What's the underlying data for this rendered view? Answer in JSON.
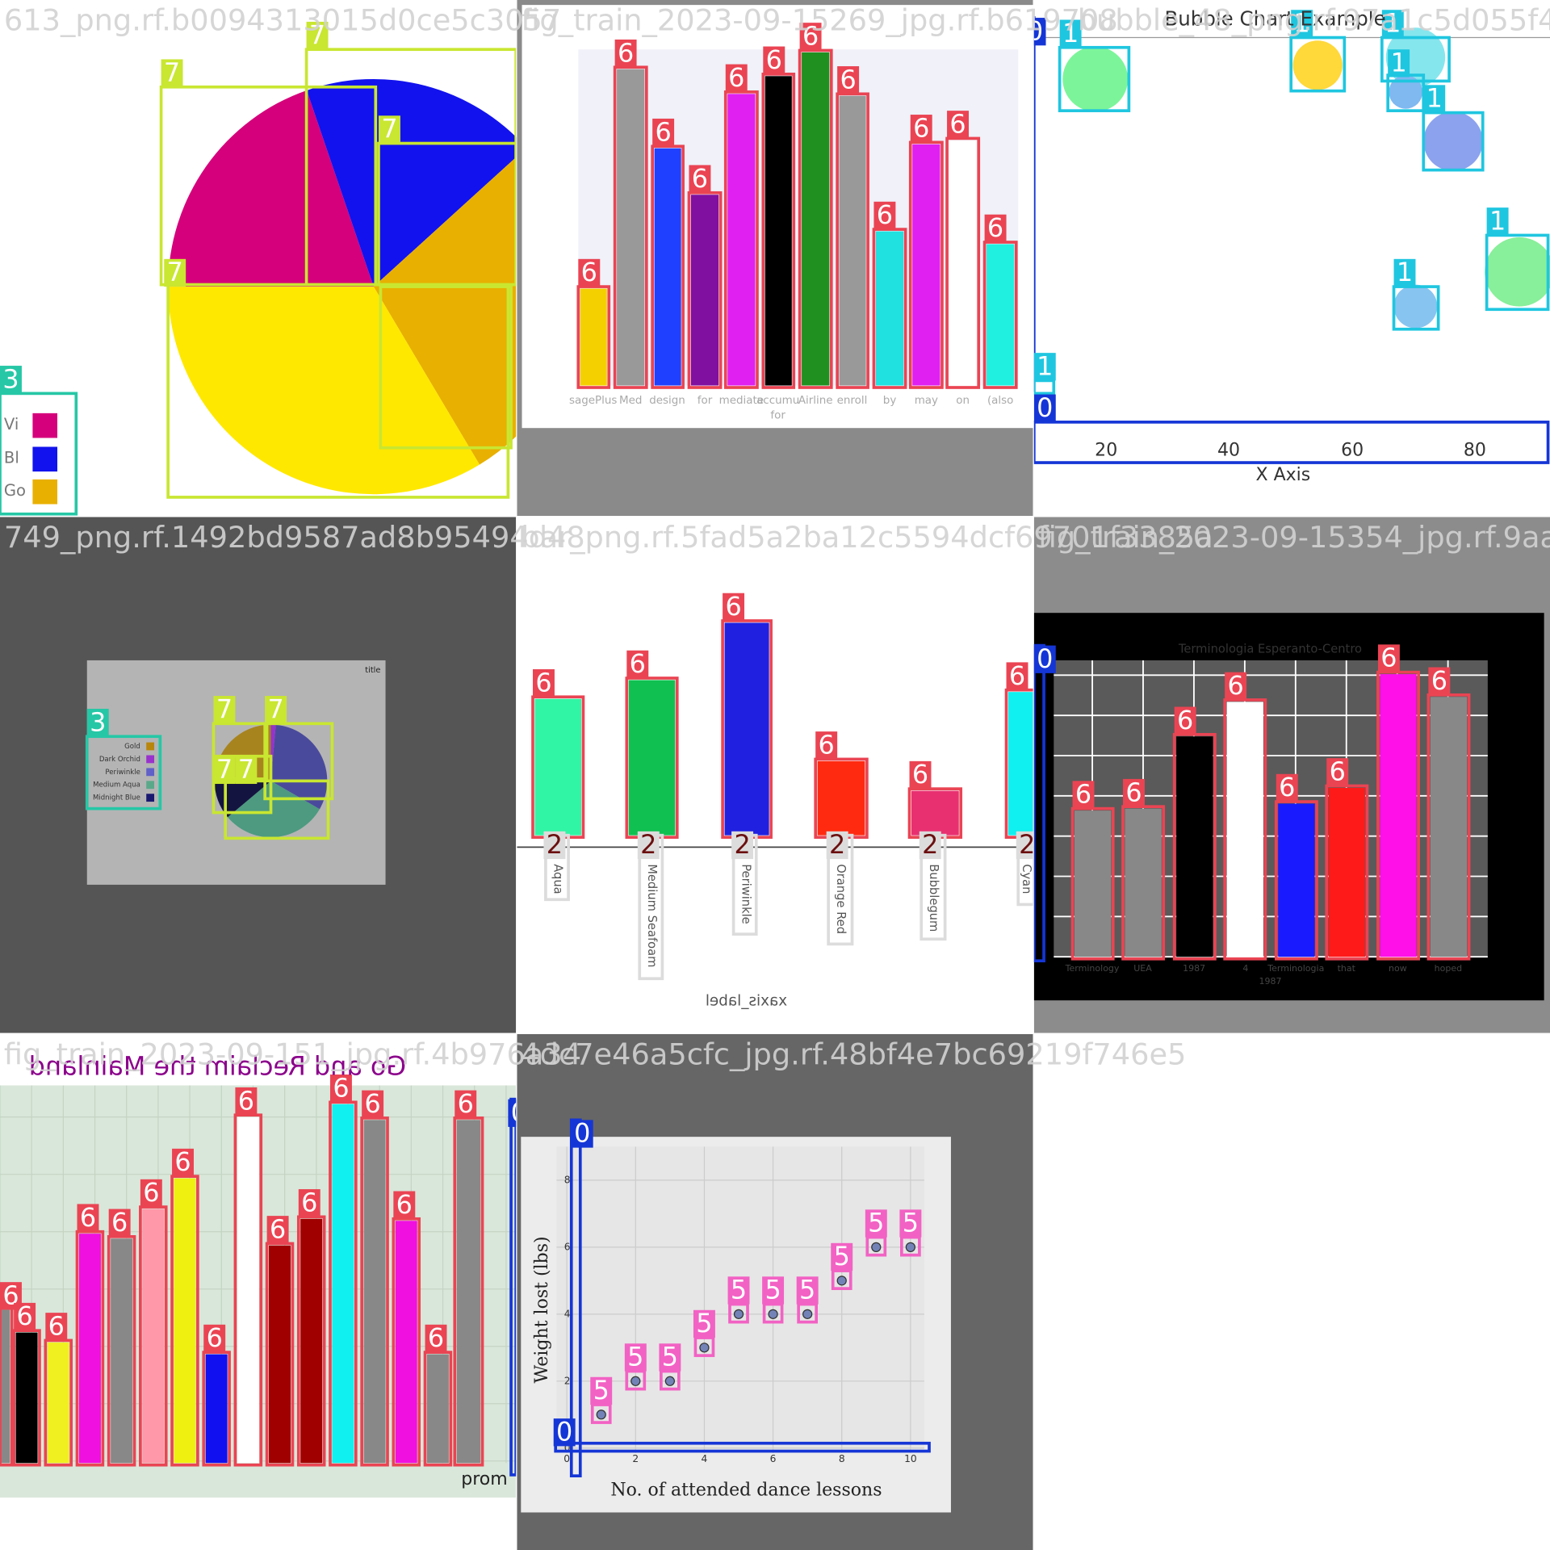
{
  "tiles": [
    {
      "title": "613_png.rf.b0094313015d0ce5c3057",
      "texts": [
        "Vi",
        "Bl",
        "Go"
      ],
      "box_labels": [
        "7",
        "7",
        "7",
        "7",
        "3"
      ]
    },
    {
      "title": "fig_train_2023-09-15269_jpg.rf.b619708",
      "texts": [
        "sagePlus",
        "Med",
        "design",
        "for",
        "mediate",
        "accumu",
        "Airline",
        "enroll",
        "by",
        "may",
        "on",
        "(also",
        "for"
      ],
      "box_labels": [
        "6",
        "6",
        "6",
        "6",
        "6",
        "6",
        "6",
        "6",
        "6",
        "6",
        "6",
        "6"
      ]
    },
    {
      "title": "bubble_48_png.rf.97a1c5d055f44",
      "texts": [
        "Bubble Chart Example",
        "20",
        "40",
        "60",
        "80",
        "X Axis"
      ],
      "box_labels": [
        "1",
        "1",
        "1",
        "1",
        "1",
        "1",
        "1",
        "0",
        "1",
        "0"
      ]
    },
    {
      "title": "749_png.rf.1492bd9587ad8b95494d48",
      "texts": [
        "title",
        "Gold",
        "Dark Orchid",
        "Periwinkle",
        "Medium Aqua",
        "Midnight Blue"
      ],
      "box_labels": [
        "7",
        "7",
        "7",
        "7",
        "3"
      ]
    },
    {
      "title": "bar_png.rf.5fad5a2ba12c5594dcf69701f3385a",
      "texts": [
        "Aqua",
        "Medium Seafoam",
        "Periwinkle",
        "Orange Red",
        "Bubblegum",
        "Cyan",
        "xaxis_label"
      ],
      "box_labels": [
        "6",
        "6",
        "6",
        "6",
        "6",
        "6",
        "2",
        "2",
        "2",
        "2",
        "2",
        "2"
      ]
    },
    {
      "title": "fig_train_2023-09-15354_jpg.rf.9aafa6",
      "texts": [
        "Terminologia Esperanto-Centro",
        "Terminology",
        "UEA",
        "1987",
        "4",
        "Terminologia",
        "1987",
        "that",
        "now",
        "hoped"
      ],
      "box_labels": [
        "6",
        "6",
        "6",
        "6",
        "6",
        "6",
        "6",
        "6",
        "0"
      ]
    },
    {
      "title": "fig_train_2023-09-151_jpg.rf.4b976a34",
      "texts": [
        "Go and Reclaim the Mainland",
        "prom"
      ],
      "box_labels": [
        "6",
        "6",
        "6",
        "6",
        "6",
        "6",
        "6",
        "6",
        "6",
        "6",
        "6",
        "6",
        "6",
        "6",
        "6",
        "6",
        "0"
      ]
    },
    {
      "title": "4dc7e46a5cfc_jpg.rf.48bf4e7bc69219f746e5",
      "box_labels": [
        "0",
        "0",
        "5",
        "5",
        "5",
        "5",
        "5",
        "5",
        "5",
        "5",
        "5",
        "5"
      ]
    }
  ],
  "chart_data": {
    "type": "scatter",
    "xlabel": "No. of attended dance lessons",
    "ylabel": "Weight lost (lbs)",
    "x": [
      1,
      2,
      3,
      4,
      5,
      6,
      7,
      8,
      9,
      10
    ],
    "values": [
      1,
      2,
      2,
      3,
      4,
      4,
      4,
      5,
      6,
      6
    ],
    "color": "#7383b8",
    "xlim": [
      -0.3,
      10.4
    ],
    "ylim": [
      -0.15,
      9.0
    ],
    "xticks": [
      0,
      2,
      4,
      6,
      8,
      10
    ],
    "yticks": [
      0,
      2,
      4,
      6,
      8
    ],
    "grid": true
  }
}
